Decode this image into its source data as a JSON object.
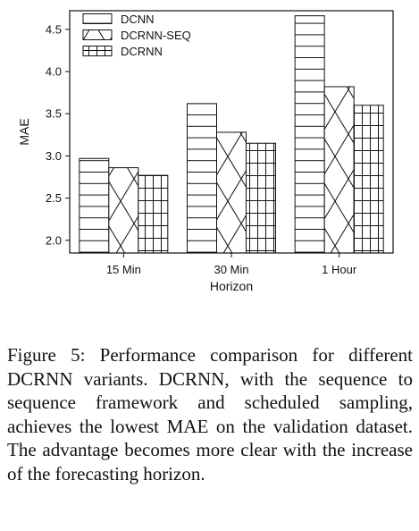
{
  "chart_data": {
    "type": "bar",
    "categories": [
      "15 Min",
      "30 Min",
      "1 Hour"
    ],
    "series": [
      {
        "name": "DCNN",
        "pattern": "horizontal-lines",
        "values": [
          2.97,
          3.62,
          4.66
        ]
      },
      {
        "name": "DCRNN-SEQ",
        "pattern": "crosshatch",
        "values": [
          2.86,
          3.28,
          3.82
        ]
      },
      {
        "name": "DCRNN",
        "pattern": "grid",
        "values": [
          2.77,
          3.15,
          3.6
        ]
      }
    ],
    "xlabel": "Horizon",
    "ylabel": "MAE",
    "ylim": [
      1.85,
      4.72
    ],
    "yticks": [
      "2.0",
      "2.5",
      "3.0",
      "3.5",
      "4.0",
      "4.5"
    ],
    "legend_position": "top-left",
    "grid": false
  },
  "caption": "Figure 5: Performance comparison for different DCRNN variants. DCRNN, with the sequence to sequence framework and scheduled sampling, achieves the lowest MAE on the validation dataset. The advantage becomes more clear with the increase of the forecasting horizon.",
  "colors": {
    "line": "#111111",
    "background": "#ffffff"
  }
}
